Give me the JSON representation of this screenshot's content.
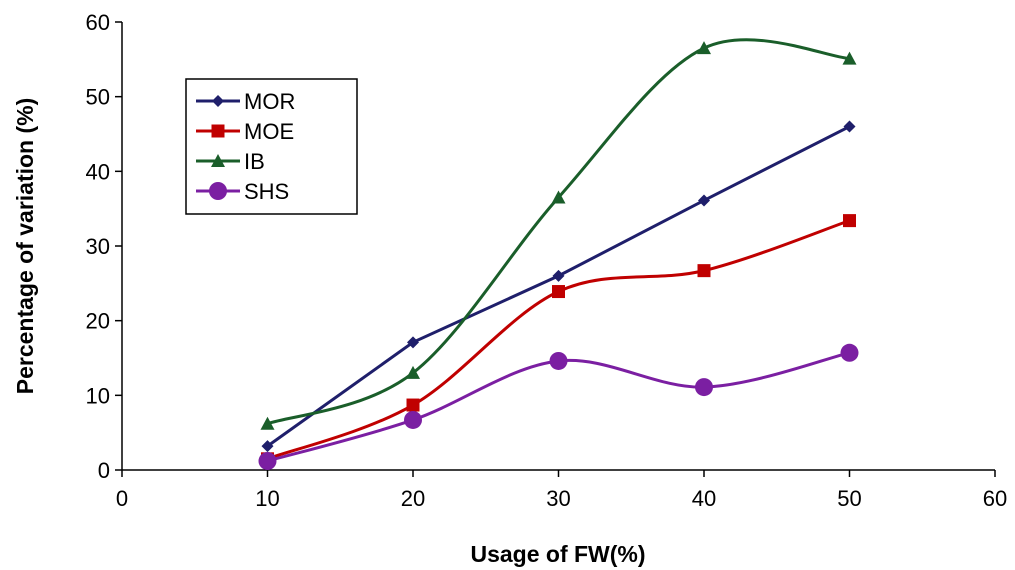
{
  "chart_data": {
    "type": "line",
    "xlabel": "Usage of FW(%)",
    "ylabel": "Percentage of variation (%)",
    "xlim": [
      0,
      60
    ],
    "ylim": [
      0,
      60
    ],
    "xticks": [
      "0",
      "10",
      "20",
      "30",
      "40",
      "50",
      "60"
    ],
    "yticks": [
      "0",
      "10",
      "20",
      "30",
      "40",
      "50",
      "60"
    ],
    "grid": false,
    "legend_position": "upper-left",
    "x": [
      10,
      20,
      30,
      40,
      50
    ],
    "series": [
      {
        "name": "MOR",
        "values": [
          3.2,
          17.1,
          26.0,
          36.1,
          46.0
        ],
        "color": "#1f1f6b",
        "marker": "diamond",
        "smooth": false
      },
      {
        "name": "MOE",
        "values": [
          1.5,
          8.7,
          23.9,
          26.7,
          33.4
        ],
        "color": "#c00000",
        "marker": "square",
        "smooth": true
      },
      {
        "name": "IB",
        "values": [
          6.2,
          13.0,
          36.5,
          56.5,
          55.1
        ],
        "color": "#1a5e2a",
        "marker": "triangle",
        "smooth": true
      },
      {
        "name": "SHS",
        "values": [
          1.2,
          6.7,
          14.6,
          11.1,
          15.7
        ],
        "color": "#7b1fa2",
        "marker": "circle",
        "smooth": true
      }
    ]
  }
}
